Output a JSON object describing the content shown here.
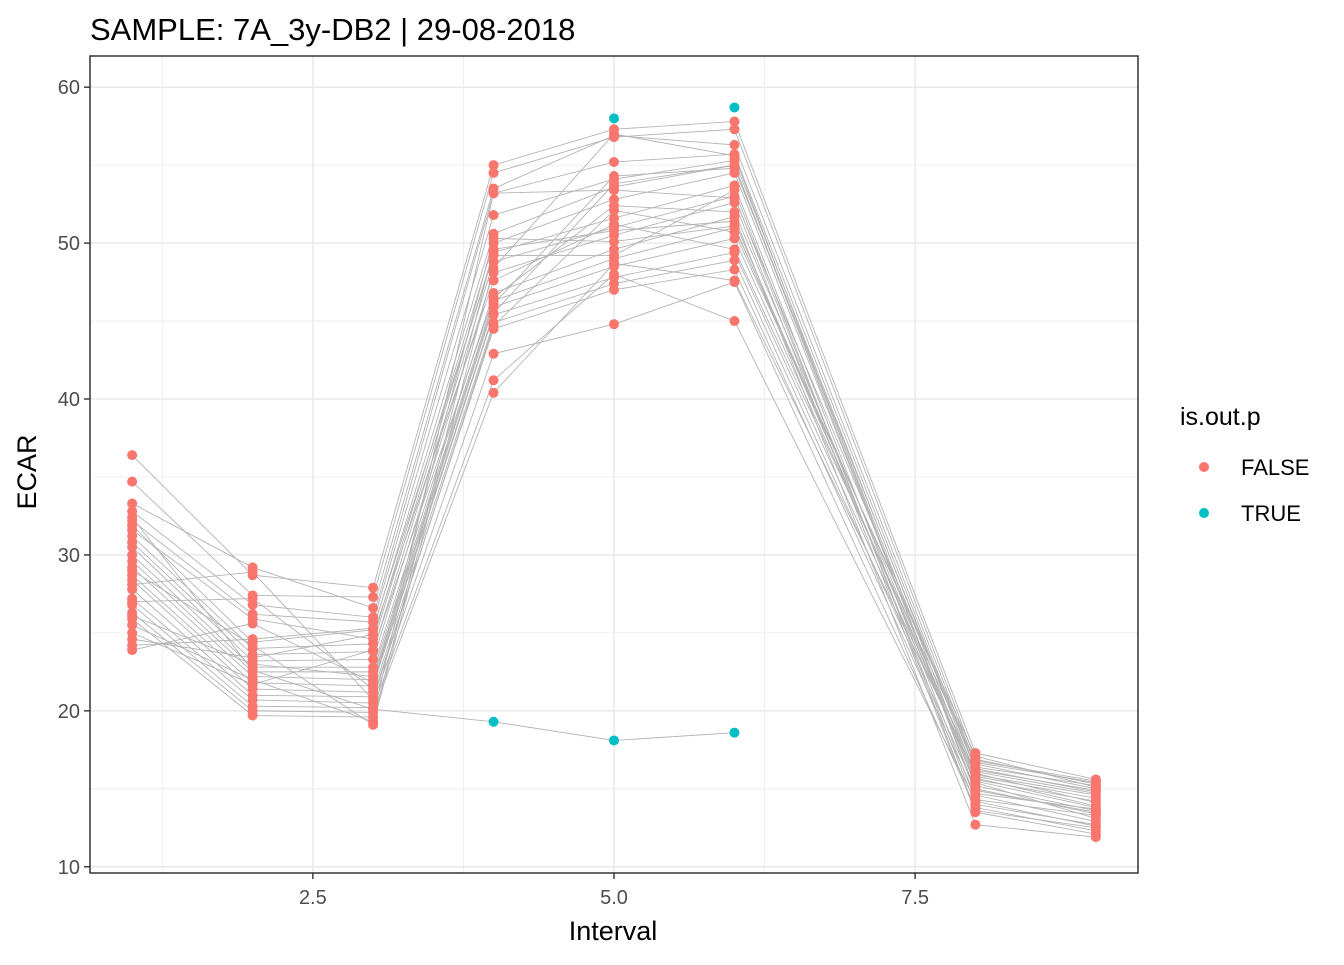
{
  "chart_data": {
    "type": "scatter",
    "title": "SAMPLE:  7A_3y-DB2 | 29-08-2018",
    "xlabel": "Interval",
    "ylabel": "ECAR",
    "xlim": [
      0.65,
      9.35
    ],
    "ylim": [
      9.6,
      62
    ],
    "x_ticks": [
      2.5,
      5.0,
      7.5
    ],
    "x_tick_labels": [
      "2.5",
      "5.0",
      "7.5"
    ],
    "y_ticks": [
      10,
      20,
      30,
      40,
      50,
      60
    ],
    "y_tick_labels": [
      "10",
      "20",
      "30",
      "40",
      "50",
      "60"
    ],
    "grid": true,
    "legend": {
      "title": "is.out.p",
      "placement": "right",
      "entries": [
        {
          "label": "FALSE",
          "color": "#F8766D"
        },
        {
          "label": "TRUE",
          "color": "#00BFC4"
        }
      ]
    },
    "x": [
      1,
      2,
      3,
      4,
      5,
      6,
      8,
      9
    ],
    "series": [
      {
        "values": [
          36.4,
          28.7,
          27.9,
          55.0,
          57.3,
          57.8,
          17.3,
          15.6
        ]
      },
      {
        "values": [
          34.7,
          27.4,
          27.3,
          54.5,
          56.8,
          57.3,
          16.9,
          15.3
        ]
      },
      {
        "values": [
          33.3,
          29.2,
          26.6,
          53.5,
          56.9,
          56.3,
          16.6,
          15.0
        ]
      },
      {
        "values": [
          32.8,
          26.8,
          26.0,
          53.2,
          55.2,
          55.7,
          16.3,
          14.8
        ]
      },
      {
        "values": [
          32.2,
          26.2,
          25.7,
          51.8,
          54.1,
          55.3,
          15.9,
          14.6
        ]
      },
      {
        "values": [
          31.9,
          24.4,
          25.2,
          50.6,
          53.6,
          55.0,
          15.5,
          13.8
        ]
      },
      {
        "values": [
          31.6,
          25.9,
          24.6,
          50.0,
          52.8,
          54.5,
          15.2,
          13.6
        ]
      },
      {
        "values": [
          31.2,
          24.0,
          24.3,
          49.4,
          51.6,
          53.7,
          14.3,
          13.3
        ]
      },
      {
        "values": [
          30.8,
          23.6,
          23.8,
          48.8,
          51.0,
          53.0,
          14.0,
          12.7
        ]
      },
      {
        "values": [
          30.5,
          23.2,
          23.3,
          48.1,
          50.5,
          52.6,
          13.5,
          12.1
        ]
      },
      {
        "values": [
          30.0,
          22.8,
          22.8,
          46.8,
          49.6,
          51.7,
          12.7,
          11.9
        ]
      },
      {
        "values": [
          29.6,
          22.5,
          22.5,
          46.3,
          49.0,
          51.0,
          16.8,
          15.5
        ]
      },
      {
        "values": [
          29.2,
          22.2,
          22.0,
          45.9,
          48.5,
          50.3,
          16.1,
          14.7
        ]
      },
      {
        "values": [
          28.7,
          21.8,
          21.6,
          45.4,
          47.8,
          49.4,
          15.7,
          13.9
        ]
      },
      {
        "values": [
          28.4,
          21.4,
          21.2,
          44.9,
          47.4,
          48.9,
          15.0,
          13.4
        ]
      },
      {
        "values": [
          27.8,
          21.0,
          20.9,
          44.5,
          47.0,
          48.3,
          14.6,
          12.9
        ]
      },
      {
        "values": [
          27.2,
          20.7,
          20.5,
          42.9,
          44.8,
          47.5,
          13.8,
          12.3
        ]
      },
      {
        "values": [
          26.8,
          20.3,
          20.2,
          41.2,
          48.0,
          45.0,
          14.2,
          12.6
        ]
      },
      {
        "values": [
          26.3,
          20.0,
          19.9,
          40.4,
          48.7,
          47.6,
          16.0,
          14.1
        ]
      },
      {
        "values": [
          25.9,
          19.7,
          19.6,
          53.2,
          53.4,
          52.9,
          16.4,
          15.2
        ]
      },
      {
        "values": [
          25.5,
          22.0,
          19.3,
          49.6,
          50.8,
          51.4,
          15.4,
          13.1
        ]
      },
      {
        "values": [
          25.0,
          21.7,
          23.9,
          46.5,
          52.4,
          52.0,
          15.8,
          14.4
        ]
      },
      {
        "values": [
          24.6,
          23.4,
          24.9,
          47.6,
          51.2,
          49.6,
          16.7,
          15.4
        ]
      },
      {
        "values": [
          24.2,
          24.6,
          25.3,
          49.2,
          49.2,
          53.4,
          13.6,
          12.5
        ]
      },
      {
        "values": [
          23.9,
          25.6,
          21.8,
          45.5,
          53.8,
          55.0,
          14.9,
          13.5
        ]
      },
      {
        "values": [
          26.1,
          23.0,
          22.2,
          46.1,
          54.3,
          54.8,
          16.2,
          14.9
        ]
      },
      {
        "values": [
          27.0,
          27.2,
          21.4,
          50.3,
          50.1,
          51.1,
          15.6,
          14.2
        ]
      },
      {
        "values": [
          28.1,
          28.9,
          20.7,
          44.7,
          52.1,
          50.7,
          17.1,
          15.1
        ]
      },
      {
        "values": [
          29.0,
          24.2,
          19.1,
          48.4,
          57.0,
          55.6,
          14.7,
          13.7
        ]
      },
      {
        "values": [
          32.4,
          22.6,
          20.1,
          19.3,
          18.1,
          18.6
        ]
      }
    ],
    "highlight": {
      "series_index": 29,
      "note": "last series drawn with is.out.p TRUE from interval 4 on",
      "true_points": [
        {
          "x": 4,
          "y": 19.3
        },
        {
          "x": 5,
          "y": 18.1
        },
        {
          "x": 6,
          "y": 18.6
        },
        {
          "x": 5,
          "y": 58.0
        },
        {
          "x": 6,
          "y": 58.7
        }
      ]
    },
    "colors": {
      "false_point": "#F8766D",
      "true_point": "#00BFC4",
      "line": "#B3B3B3",
      "grid": "#EBEBEB",
      "panel_border": "#333333"
    }
  }
}
